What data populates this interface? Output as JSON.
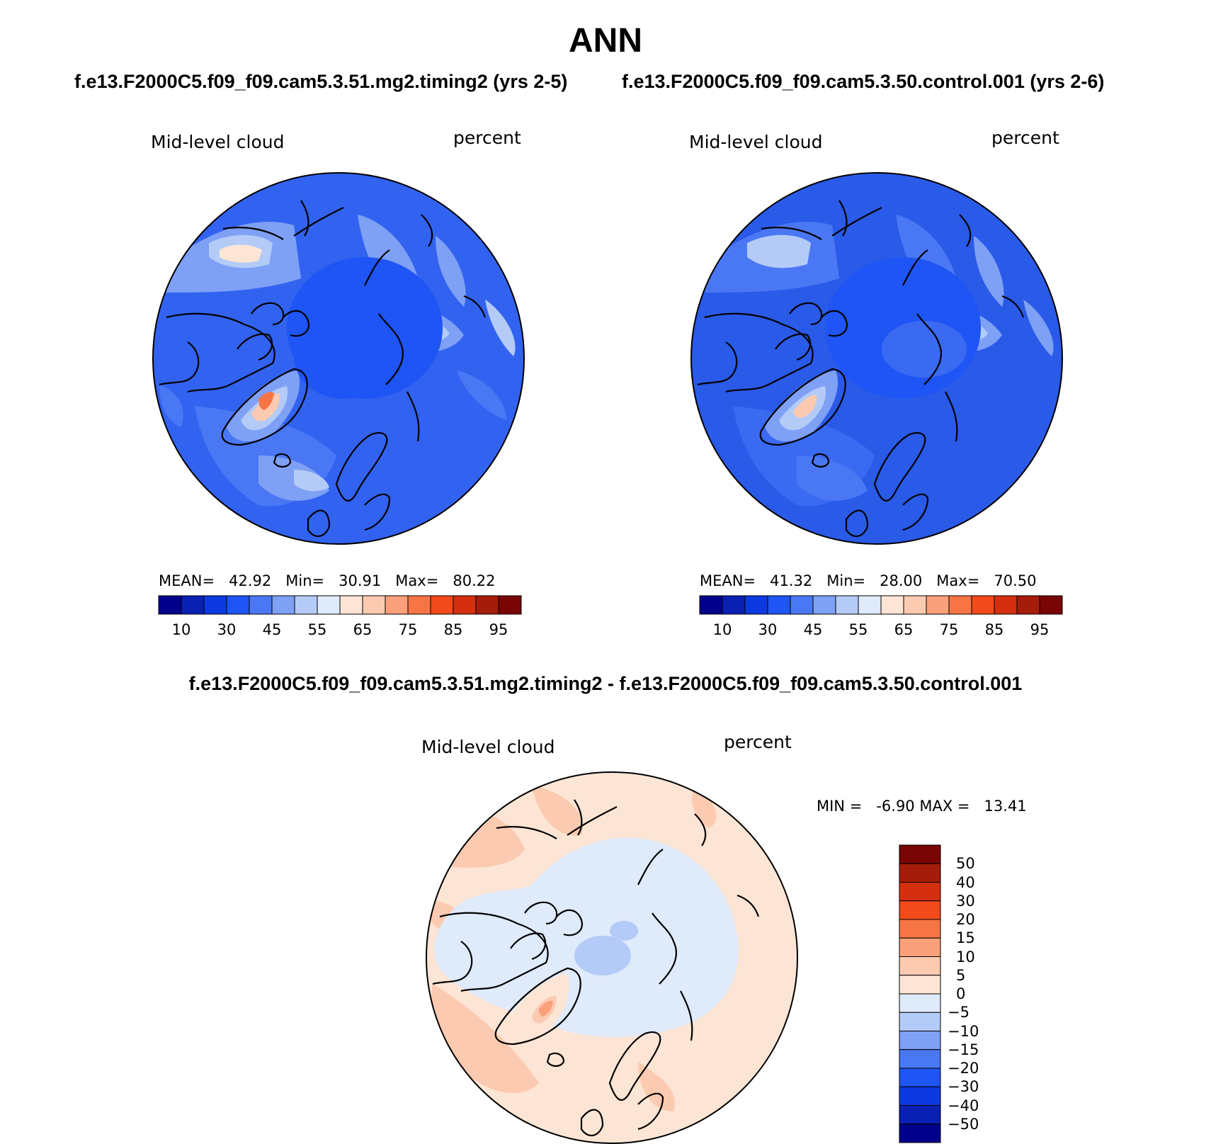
{
  "title": "ANN",
  "panels": [
    {
      "id": "test",
      "case_title": "f.e13.F2000C5.f09_f09.cam5.3.51.mg2.timing2 (yrs 2-5)",
      "left_label": "Mid-level cloud",
      "right_label": "percent",
      "stats": {
        "mean_label": "MEAN=",
        "mean": "42.92",
        "min_label": "Min=",
        "min": "30.91",
        "max_label": "Max=",
        "max": "80.22"
      },
      "base_color": "#3060f0"
    },
    {
      "id": "control",
      "case_title": "f.e13.F2000C5.f09_f09.cam5.3.50.control.001 (yrs 2-6)",
      "left_label": "Mid-level cloud",
      "right_label": "percent",
      "stats": {
        "mean_label": "MEAN=",
        "mean": "41.32",
        "min_label": "Min=",
        "min": "28.00",
        "max_label": "Max=",
        "max": "70.50"
      },
      "base_color": "#2a5ae8"
    }
  ],
  "abs_colorbar": {
    "colors": [
      "#00008b",
      "#0a1fb4",
      "#0d3ae0",
      "#1f55f5",
      "#4a78f5",
      "#7ea0f5",
      "#b4cbf7",
      "#dfeafb",
      "#fde5d5",
      "#fccab0",
      "#f9a07a",
      "#f77545",
      "#f24a1a",
      "#d43010",
      "#a51c0a",
      "#7a0505"
    ],
    "labels": [
      "10",
      "30",
      "45",
      "55",
      "65",
      "75",
      "85",
      "95"
    ]
  },
  "diff": {
    "title": "f.e13.F2000C5.f09_f09.cam5.3.51.mg2.timing2 - f.e13.F2000C5.f09_f09.cam5.3.50.control.001",
    "left_label": "Mid-level cloud",
    "right_label": "percent",
    "min_label": "MIN =",
    "min": "-6.90",
    "max_label": "MAX =",
    "max": "13.41",
    "base_color": "#fce5d6",
    "colorbar_colors_top_to_bottom": [
      "#7a0505",
      "#a51c0a",
      "#d43010",
      "#f24a1a",
      "#f77545",
      "#f9a07a",
      "#fccab0",
      "#fde5d5",
      "#dfeafb",
      "#b4cbf7",
      "#7ea0f5",
      "#4a78f5",
      "#1f55f5",
      "#0d3ae0",
      "#0a1fb4",
      "#00008b"
    ],
    "colorbar_labels": [
      "50",
      "40",
      "30",
      "20",
      "15",
      "10",
      "5",
      "0",
      "−5",
      "−10",
      "−15",
      "−20",
      "−30",
      "−40",
      "−50"
    ]
  }
}
